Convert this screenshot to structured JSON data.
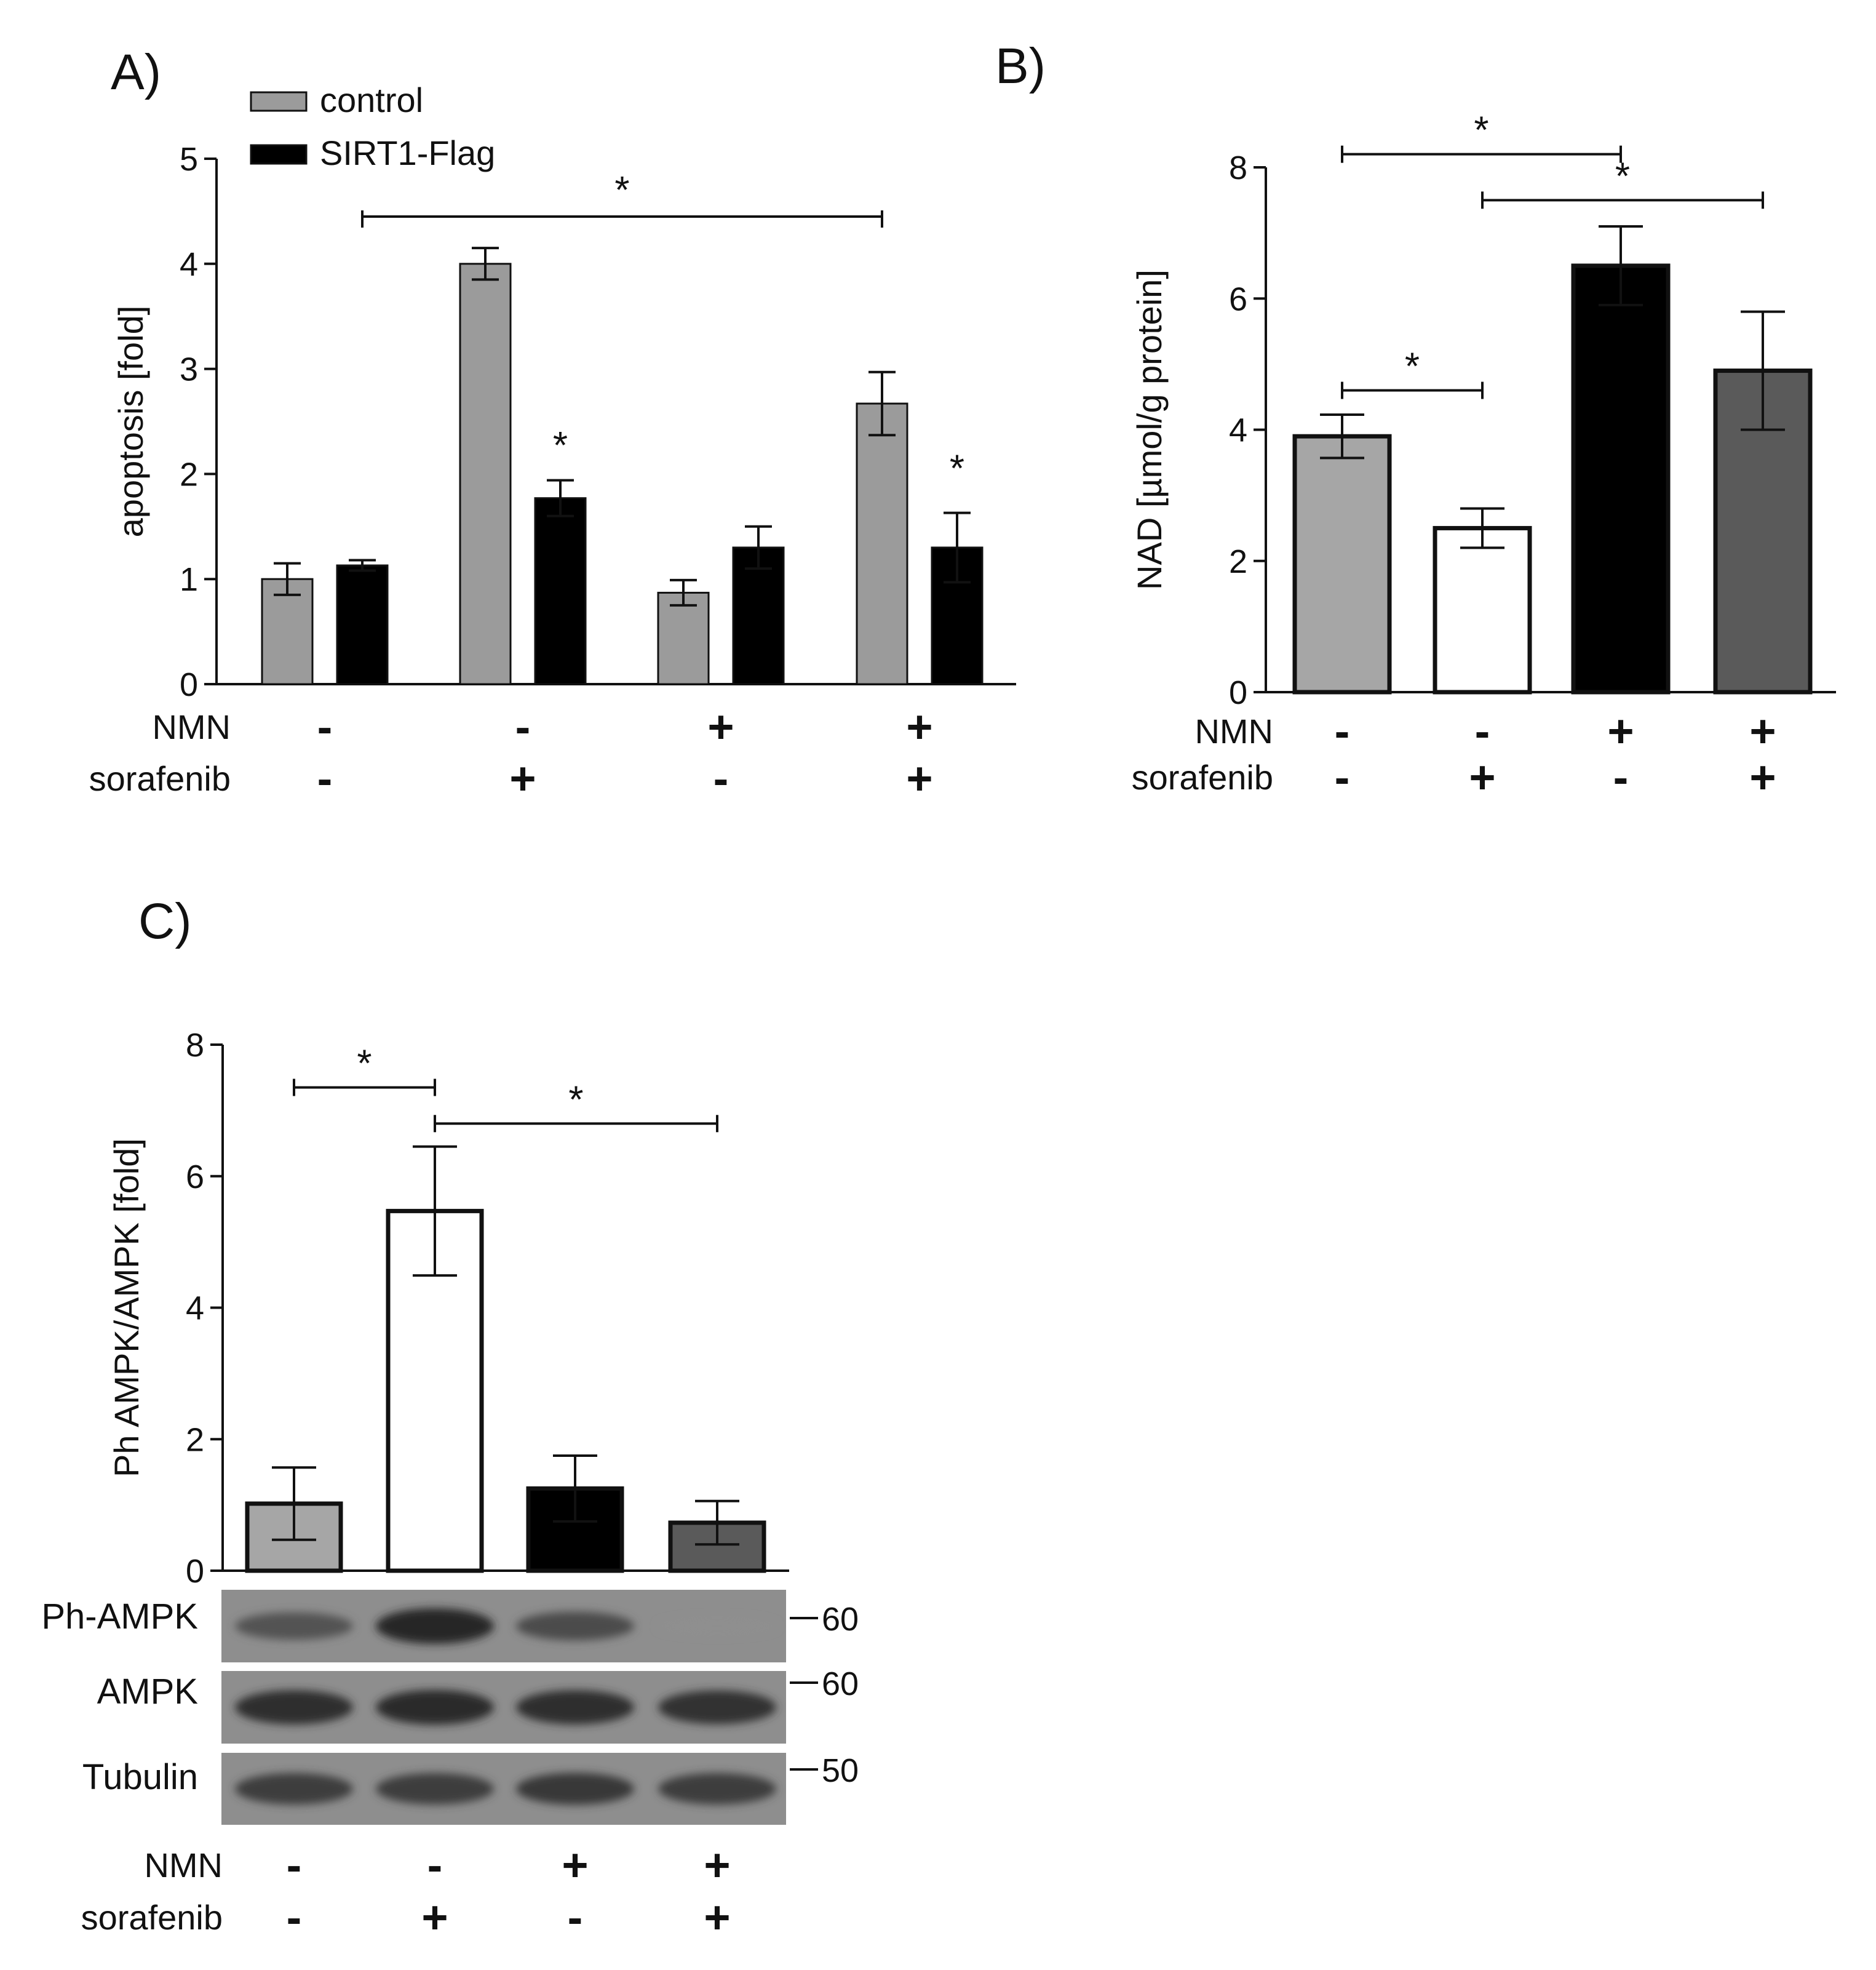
{
  "figure": {
    "panel_labels": [
      "A)",
      "B)",
      "C)"
    ]
  },
  "chart_data": [
    {
      "id": "A",
      "type": "bar",
      "panel_label": "A)",
      "ylabel": "apoptosis [fold]",
      "ylim": [
        0,
        5
      ],
      "yticks": [
        0,
        1,
        2,
        3,
        4,
        5
      ],
      "groups": 4,
      "condition_rows": [
        {
          "label": "NMN",
          "signs": [
            "-",
            "-",
            "+",
            "+"
          ]
        },
        {
          "label": "sorafenib",
          "signs": [
            "-",
            "+",
            "-",
            "+"
          ]
        }
      ],
      "series": [
        {
          "name": "control",
          "color": "#9b9b9b",
          "values": [
            1.0,
            4.0,
            0.87,
            2.67
          ],
          "errors": [
            0.15,
            0.15,
            0.12,
            0.3
          ]
        },
        {
          "name": "SIRT1-Flag",
          "color": "#000000",
          "values": [
            1.13,
            1.77,
            1.3,
            1.3
          ],
          "errors": [
            0.05,
            0.17,
            0.2,
            0.33
          ]
        }
      ],
      "significance": [
        {
          "from": 0,
          "from_series": 1,
          "to": 3,
          "to_series": 0,
          "y": 4.45,
          "label": "*"
        }
      ],
      "bar_stars": [
        {
          "group": 1,
          "series": 1,
          "y": 2.15,
          "label": "*"
        },
        {
          "group": 3,
          "series": 1,
          "y": 1.93,
          "label": "*"
        }
      ]
    },
    {
      "id": "B",
      "type": "bar",
      "panel_label": "B)",
      "ylabel": "NAD [µmol/g protein]",
      "ylim": [
        0,
        8
      ],
      "yticks": [
        0,
        2,
        4,
        6,
        8
      ],
      "condition_rows": [
        {
          "label": "NMN",
          "signs": [
            "-",
            "-",
            "+",
            "+"
          ]
        },
        {
          "label": "sorafenib",
          "signs": [
            "-",
            "+",
            "-",
            "+"
          ]
        }
      ],
      "bars": [
        {
          "value": 3.9,
          "error": 0.33,
          "color": "#a6a6a6"
        },
        {
          "value": 2.5,
          "error": 0.3,
          "color": "#ffffff"
        },
        {
          "value": 6.5,
          "error": 0.6,
          "color": "#000000"
        },
        {
          "value": 4.9,
          "error": 0.9,
          "color": "#5a5a5a"
        }
      ],
      "significance": [
        {
          "from": 0,
          "to": 2,
          "y": 8.2,
          "label": "*"
        },
        {
          "from": 1,
          "to": 3,
          "y": 7.5,
          "label": "*"
        },
        {
          "from": 0,
          "to": 1,
          "y": 4.6,
          "label": "*"
        }
      ]
    },
    {
      "id": "C",
      "type": "bar",
      "panel_label": "C)",
      "ylabel": "Ph AMPK/AMPK [fold]",
      "ylim": [
        0,
        8
      ],
      "yticks": [
        0,
        2,
        4,
        6,
        8
      ],
      "condition_rows": [
        {
          "label": "NMN",
          "signs": [
            "-",
            "-",
            "+",
            "+"
          ]
        },
        {
          "label": "sorafenib",
          "signs": [
            "-",
            "+",
            "-",
            "+"
          ]
        }
      ],
      "bars": [
        {
          "value": 1.02,
          "error": 0.55,
          "color": "#a6a6a6"
        },
        {
          "value": 5.47,
          "error": 0.98,
          "color": "#ffffff"
        },
        {
          "value": 1.25,
          "error": 0.5,
          "color": "#000000"
        },
        {
          "value": 0.73,
          "error": 0.33,
          "color": "#5a5a5a"
        }
      ],
      "significance": [
        {
          "from": 0,
          "to": 1,
          "y": 7.35,
          "label": "*"
        },
        {
          "from": 1,
          "to": 3,
          "y": 6.8,
          "label": "*"
        }
      ],
      "blots": [
        {
          "label": "Ph-AMPK",
          "mw": "60",
          "band_intensity": [
            0.65,
            0.95,
            0.7,
            0.25
          ]
        },
        {
          "label": "AMPK",
          "mw": "60",
          "band_intensity": [
            0.9,
            0.92,
            0.9,
            0.88
          ]
        },
        {
          "label": "Tubulin",
          "mw": "50",
          "band_intensity": [
            0.8,
            0.8,
            0.82,
            0.8
          ]
        }
      ]
    }
  ]
}
